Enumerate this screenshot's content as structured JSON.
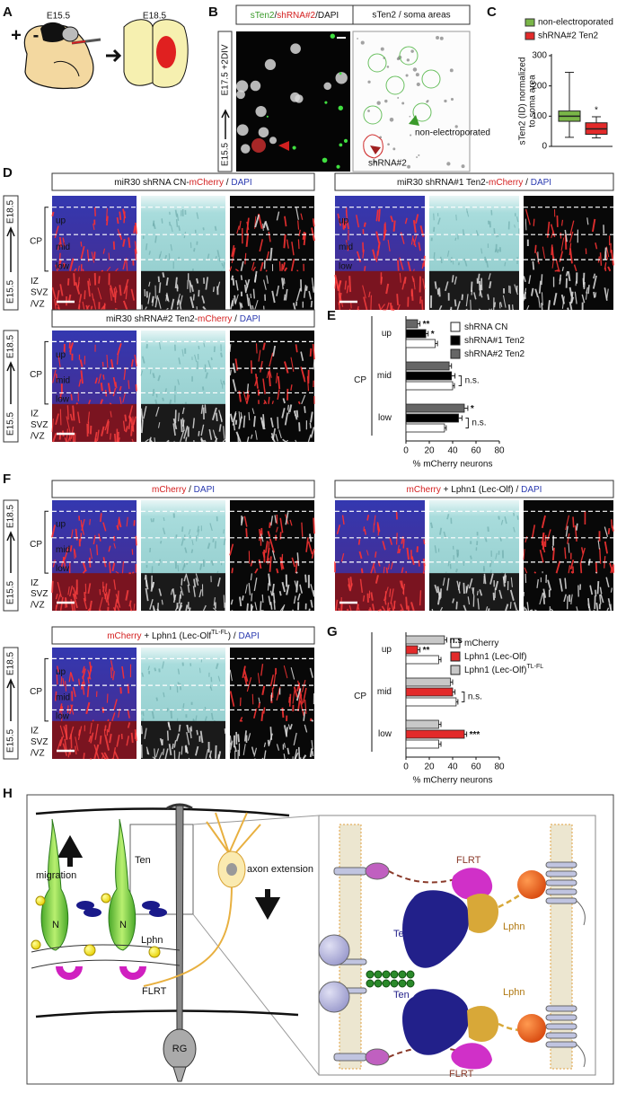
{
  "figure": {
    "A": {
      "label": "A",
      "stage1": "E15.5",
      "stage2": "E18.5",
      "plus": "+",
      "minus": "-"
    },
    "B": {
      "label": "B",
      "title1": [
        {
          "text": "sTen2",
          "color": "#3a9a2a"
        },
        {
          "text": "/",
          "color": "#111111"
        },
        {
          "text": "shRNA#2",
          "color": "#d42020"
        },
        {
          "text": "/DAPI",
          "color": "#111111"
        }
      ],
      "title2": "sTen2 / soma areas",
      "side_start": "E15.5",
      "side_end": "E17.5 +2DIV",
      "arrow_green": "non-electroporated",
      "arrow_red": "shRNA#2"
    },
    "C": {
      "label": "C"
    },
    "D": {
      "label": "D",
      "rows": [
        {
          "title": [
            {
              "text": "miR30 shRNA CN-",
              "color": "#111111"
            },
            {
              "text": "mCherry",
              "color": "#d42020"
            },
            {
              "text": " / ",
              "color": "#111111"
            },
            {
              "text": "DAPI",
              "color": "#2a3ab0"
            }
          ]
        },
        {
          "title": [
            {
              "text": "miR30 shRNA#1 Ten2-",
              "color": "#111111"
            },
            {
              "text": "mCherry",
              "color": "#d42020"
            },
            {
              "text": " / ",
              "color": "#111111"
            },
            {
              "text": "DAPI",
              "color": "#2a3ab0"
            }
          ]
        },
        {
          "title": [
            {
              "text": "miR30 shRNA#2 Ten2-",
              "color": "#111111"
            },
            {
              "text": "mCherry",
              "color": "#d42020"
            },
            {
              "text": " / ",
              "color": "#111111"
            },
            {
              "text": "DAPI",
              "color": "#2a3ab0"
            }
          ]
        }
      ]
    },
    "E": {
      "label": "E"
    },
    "F": {
      "label": "F",
      "rows": [
        {
          "title": [
            {
              "text": "mCherry",
              "color": "#d42020"
            },
            {
              "text": " / ",
              "color": "#111111"
            },
            {
              "text": "DAPI",
              "color": "#2a3ab0"
            }
          ]
        },
        {
          "title": [
            {
              "text": "mCherry",
              "color": "#d42020"
            },
            {
              "text": " + Lphn1 (Lec-Olf) / ",
              "color": "#111111"
            },
            {
              "text": "DAPI",
              "color": "#2a3ab0"
            }
          ]
        },
        {
          "title": [
            {
              "text": "mCherry",
              "color": "#d42020"
            },
            {
              "text": " + Lphn1 (Lec-Olf",
              "color": "#111111"
            },
            {
              "text": "TL-FL",
              "color": "#111111",
              "sup": true
            },
            {
              "text": ") / ",
              "color": "#111111"
            },
            {
              "text": "DAPI",
              "color": "#2a3ab0"
            }
          ]
        }
      ]
    },
    "G": {
      "label": "G"
    },
    "H": {
      "label": "H",
      "migration": "migration",
      "axon": "axon extension",
      "ten": "Ten",
      "lphn": "Lphn",
      "n1": "N",
      "n2": "N",
      "flrt": "FLRT",
      "rg": "RG",
      "right": {
        "flrt_top": "FLRT",
        "ten_top": "Ten",
        "lphn_top": "Lphn",
        "ten_bottom": "Ten",
        "lphn_bottom": "Lphn",
        "flrt_bottom": "FLRT"
      }
    },
    "layers": {
      "up": "up",
      "cp": "CP",
      "mid": "mid",
      "low": "low",
      "iz": "IZ",
      "svz": "SVZ",
      "vz": "/VZ"
    },
    "stage_start": "E15.5",
    "stage_end": "E18.5"
  },
  "chart_data": [
    {
      "type": "box",
      "ylabel": [
        "sTen2 (ID) normalized",
        "to soma area"
      ],
      "ylim": [
        0,
        300
      ],
      "yticks": [
        0,
        100,
        200,
        300
      ],
      "legend": "upper left",
      "series": [
        {
          "name": "non-electroporated",
          "color": "#7ab648",
          "whisker_low": 30,
          "q1": 83,
          "median": 100,
          "q3": 117,
          "whisker_high": 245
        },
        {
          "name": "shRNA#2 Ten2",
          "color": "#e32a2a",
          "whisker_low": 28,
          "q1": 40,
          "median": 58,
          "q3": 78,
          "whisker_high": 98,
          "annotation": "*"
        }
      ]
    },
    {
      "type": "bar",
      "horizontal": true,
      "group_label": "CP",
      "categories": [
        "up",
        "mid",
        "low"
      ],
      "xlabel": "% mCherry neurons",
      "xlim": [
        0,
        80
      ],
      "xticks": [
        0,
        20,
        40,
        60,
        80
      ],
      "legend": "upper right",
      "bracket_labels": [
        null,
        "n.s.",
        "n.s."
      ],
      "series": [
        {
          "name": "shRNA CN",
          "color": "#ffffff",
          "values": [
            25,
            40,
            33
          ],
          "errors": [
            2,
            1.5,
            1.5
          ]
        },
        {
          "name": "shRNA#1 Ten2",
          "color": "#000000",
          "values": [
            17,
            39,
            45
          ],
          "errors": [
            2,
            3,
            3
          ],
          "annotations": [
            "*",
            null,
            null
          ]
        },
        {
          "name": "shRNA#2 Ten2",
          "color": "#666666",
          "values": [
            10,
            37,
            50
          ],
          "errors": [
            2,
            2,
            3
          ],
          "annotations": [
            "**",
            null,
            "*"
          ]
        }
      ]
    },
    {
      "type": "bar",
      "horizontal": true,
      "group_label": "CP",
      "categories": [
        "up",
        "mid",
        "low"
      ],
      "xlabel": "% mCherry neurons",
      "xlim": [
        0,
        80
      ],
      "xticks": [
        0,
        20,
        40,
        60,
        80
      ],
      "legend": "upper right",
      "bracket_labels": [
        null,
        "n.s.",
        null
      ],
      "series": [
        {
          "name": "mCherry",
          "color": "#ffffff",
          "values": [
            28,
            43,
            28
          ],
          "errors": [
            2,
            1.5,
            2
          ]
        },
        {
          "name": "Lphn1 (Lec-Olf)",
          "color": "#e32a2a",
          "values": [
            10,
            40,
            50
          ],
          "errors": [
            2,
            2,
            2
          ],
          "annotations": [
            "**",
            null,
            "***"
          ]
        },
        {
          "name": "Lphn1 (Lec-Olf)",
          "name_sup": "TL-FL",
          "color": "#c8c8c8",
          "values": [
            33,
            38,
            28
          ],
          "errors": [
            2,
            2,
            2
          ],
          "annotations": [
            "n.s",
            null,
            null
          ]
        }
      ]
    }
  ]
}
